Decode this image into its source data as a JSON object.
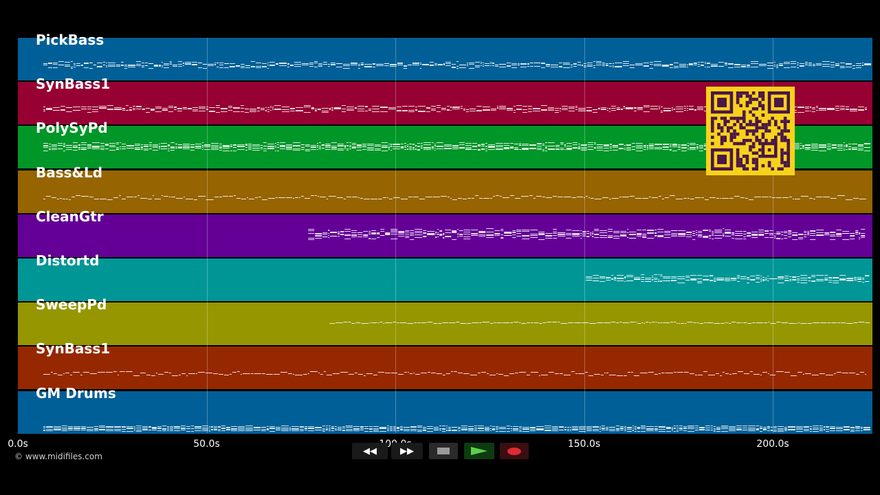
{
  "tracks": [
    {
      "name": "PickBass",
      "color": "#005f96",
      "start": 0.02,
      "density": 3,
      "jitter": 3
    },
    {
      "name": "SynBass1",
      "color": "#960032",
      "start": 0.02,
      "density": 3,
      "jitter": 3
    },
    {
      "name": "PolySyPd",
      "color": "#009628",
      "start": 0.02,
      "density": 5,
      "jitter": 2
    },
    {
      "name": "Bass&Ld",
      "color": "#966400",
      "start": 0.02,
      "density": 1,
      "jitter": 3
    },
    {
      "name": "CleanGtr",
      "color": "#640096",
      "start": 0.33,
      "density": 5,
      "jitter": 4
    },
    {
      "name": "Distortd",
      "color": "#009696",
      "start": 0.655,
      "density": 4,
      "jitter": 3
    },
    {
      "name": "SweepPd",
      "color": "#969600",
      "start": 0.355,
      "density": 1,
      "jitter": 1
    },
    {
      "name": "SynBass1",
      "color": "#962800",
      "start": 0.02,
      "density": 1,
      "jitter": 3
    },
    {
      "name": "GM Drums",
      "color": "#005f96",
      "start": 0.02,
      "density": 4,
      "jitter": 1
    }
  ],
  "time_axis": {
    "unit": "s",
    "max": 226.9,
    "ticks": [
      {
        "value": 0,
        "label": "0.0s"
      },
      {
        "value": 50,
        "label": "50.0s"
      },
      {
        "value": 100,
        "label": "100.0s"
      },
      {
        "value": 150,
        "label": "150.0s"
      },
      {
        "value": 200,
        "label": "200.0s"
      }
    ]
  },
  "copyright": "© www.midifiles.com",
  "transport": {
    "rewind": {
      "icon": "rewind-icon",
      "label": "◀◀"
    },
    "fast_forward": {
      "icon": "fast-forward-icon",
      "label": "▶▶"
    },
    "stop": {
      "icon": "stop-icon",
      "color": "#9a9a9a"
    },
    "play": {
      "icon": "play-icon",
      "color": "#3a9a3a"
    },
    "record": {
      "icon": "record-icon",
      "color": "#c0202a"
    }
  },
  "qr_code": {
    "icon": "qr-code-icon",
    "background": "#f7d21b",
    "foreground": "#4a1648"
  }
}
